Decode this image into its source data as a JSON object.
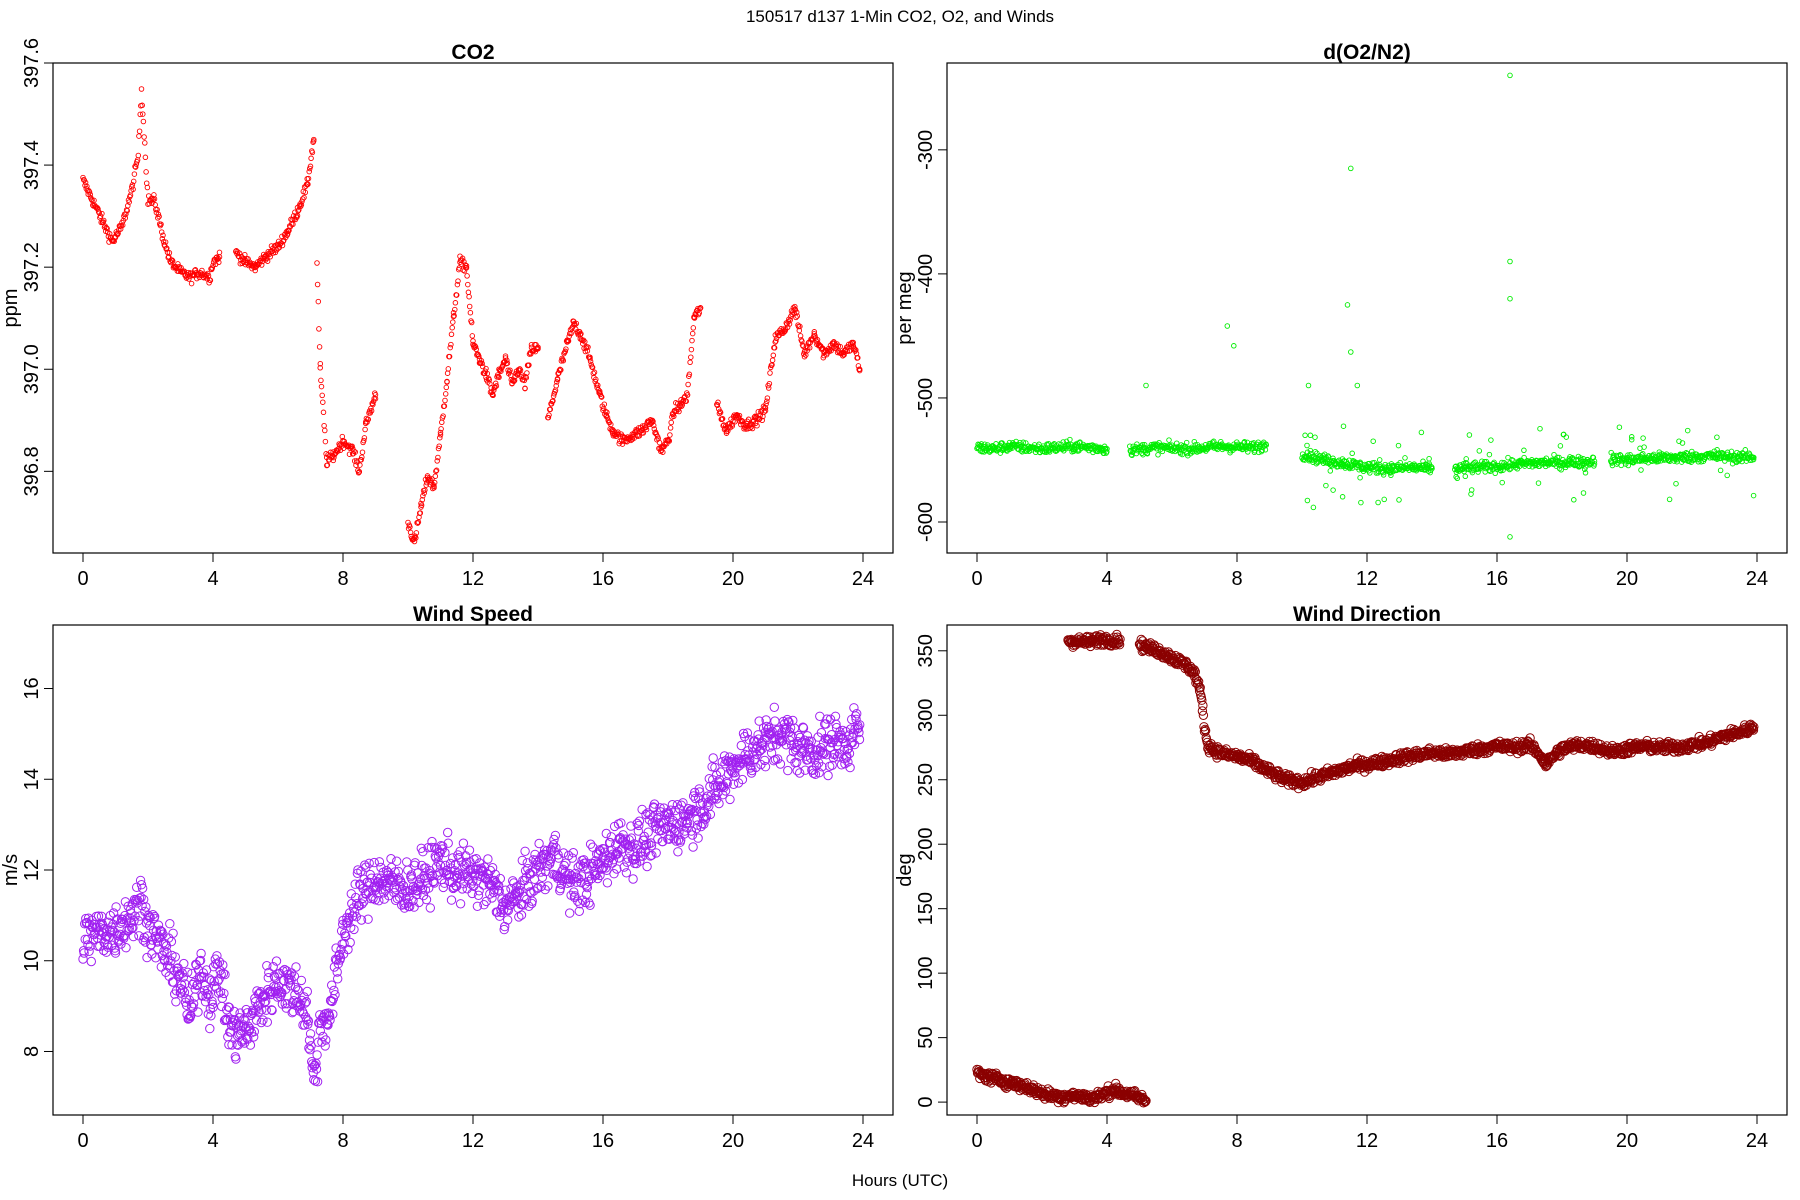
{
  "figure": {
    "title": "150517   d137   1-Min CO2, O2, and Winds",
    "xlabel": "Hours (UTC)"
  },
  "chart_data": [
    {
      "type": "scatter",
      "title": "CO2",
      "ylabel": "ppm",
      "xlim": [
        0,
        24
      ],
      "ylim": [
        396.64,
        397.6
      ],
      "xticks": [
        0,
        4,
        8,
        12,
        16,
        20,
        24
      ],
      "xtick_labels": [
        "0",
        "4",
        "8",
        "12",
        "16",
        "20",
        "24"
      ],
      "yticks": [
        396.8,
        397.0,
        397.2,
        397.4,
        397.6
      ],
      "ytick_labels": [
        "396.8",
        "397.0",
        "397.2",
        "397.4",
        "397.6"
      ],
      "color": "#ff0000",
      "marker": "open-circle-small",
      "grid": false,
      "series": [
        {
          "x": [
            0,
            0.3,
            0.6,
            0.9,
            1.2,
            1.5,
            1.7,
            1.8,
            2.0,
            2.2,
            2.5,
            2.7,
            3.0,
            3.3,
            3.6,
            3.9,
            4.0,
            4.2
          ],
          "y": [
            397.37,
            397.33,
            397.29,
            397.25,
            397.28,
            397.35,
            397.42,
            397.55,
            397.33,
            397.33,
            397.25,
            397.21,
            397.19,
            397.18,
            397.19,
            397.18,
            397.21,
            397.22
          ]
        },
        {
          "x": [
            4.7,
            5.0,
            5.3,
            5.6,
            6.0,
            6.3,
            6.6,
            6.9,
            7.1
          ],
          "y": [
            397.23,
            397.21,
            397.2,
            397.22,
            397.24,
            397.27,
            397.31,
            397.36,
            397.45
          ]
        },
        {
          "x": [
            7.2,
            7.3,
            7.5,
            7.7,
            8.0,
            8.3,
            8.5,
            8.7,
            8.9,
            9.0
          ],
          "y": [
            397.21,
            397.0,
            396.82,
            396.83,
            396.86,
            396.84,
            396.8,
            396.89,
            396.93,
            396.95
          ]
        },
        {
          "x": [
            10.0,
            10.2,
            10.4,
            10.6,
            10.8,
            11.0,
            11.2,
            11.4,
            11.6,
            11.8,
            12.0,
            12.2,
            12.4,
            12.6,
            12.8,
            13.0,
            13.2,
            13.4,
            13.6,
            13.8,
            14.0
          ],
          "y": [
            396.7,
            396.66,
            396.73,
            396.79,
            396.77,
            396.87,
            396.98,
            397.1,
            397.21,
            397.2,
            397.05,
            397.02,
            396.99,
            396.95,
            396.99,
            397.02,
            396.97,
            397.0,
            396.97,
            397.04,
            397.04
          ]
        },
        {
          "x": [
            14.3,
            14.6,
            14.9,
            15.1,
            15.3,
            15.6,
            15.9,
            16.1,
            16.3,
            16.6,
            16.9,
            17.2,
            17.5,
            17.8,
            18.0,
            18.2,
            18.4,
            18.6,
            18.8,
            19.0
          ],
          "y": [
            396.9,
            396.98,
            397.05,
            397.09,
            397.07,
            397.02,
            396.95,
            396.91,
            396.88,
            396.86,
            396.87,
            396.88,
            396.9,
            396.84,
            396.86,
            396.92,
            396.93,
            396.95,
            397.1,
            397.12
          ]
        },
        {
          "x": [
            19.5,
            19.8,
            20.1,
            20.4,
            20.7,
            21.0,
            21.3,
            21.6,
            21.9,
            22.2,
            22.5,
            22.8,
            23.1,
            23.4,
            23.7,
            23.9
          ],
          "y": [
            396.93,
            396.88,
            396.91,
            396.89,
            396.9,
            396.92,
            397.06,
            397.08,
            397.12,
            397.03,
            397.07,
            397.03,
            397.05,
            397.03,
            397.05,
            397.0
          ]
        }
      ]
    },
    {
      "type": "scatter",
      "title": "d(O2/N2)",
      "ylabel": "per meg",
      "xlim": [
        0,
        24
      ],
      "ylim": [
        -625,
        -230
      ],
      "xticks": [
        0,
        4,
        8,
        12,
        16,
        20,
        24
      ],
      "xtick_labels": [
        "0",
        "4",
        "8",
        "12",
        "16",
        "20",
        "24"
      ],
      "yticks": [
        -600,
        -500,
        -400,
        -300
      ],
      "ytick_labels": [
        "-600",
        "-500",
        "-400",
        "-300"
      ],
      "color": "#00ee00",
      "marker": "open-circle-small",
      "grid": false,
      "series": [
        {
          "x": [
            0,
            0.5,
            1,
            1.5,
            2,
            2.5,
            3,
            3.5,
            4
          ],
          "y": [
            -540,
            -541,
            -539,
            -540,
            -541,
            -540,
            -539,
            -540,
            -541
          ]
        },
        {
          "x": [
            4.7,
            5.5,
            6.5,
            7.5,
            8.5,
            8.9
          ],
          "y": [
            -542,
            -540,
            -541,
            -539,
            -540,
            -538
          ]
        },
        {
          "x": [
            10,
            10.7,
            11.4,
            12,
            12.7,
            13.4,
            14
          ],
          "y": [
            -545,
            -550,
            -553,
            -556,
            -557,
            -556,
            -557
          ]
        },
        {
          "x": [
            14.7,
            15.4,
            16.1,
            16.8,
            17.5,
            18.2,
            19
          ],
          "y": [
            -557,
            -556,
            -555,
            -553,
            -552,
            -552,
            -551
          ]
        },
        {
          "x": [
            19.5,
            20.5,
            21.5,
            22.5,
            23.9
          ],
          "y": [
            -550,
            -549,
            -548,
            -547,
            -548
          ]
        }
      ],
      "outliers": {
        "x": [
          5.2,
          7.7,
          7.9,
          10.2,
          11.4,
          11.5,
          11.5,
          11.7,
          16.4,
          16.4,
          16.4,
          16.4
        ],
        "y": [
          -490,
          -442,
          -458,
          -490,
          -425,
          -463,
          -315,
          -490,
          -240,
          -390,
          -420,
          -612
        ]
      }
    },
    {
      "type": "scatter",
      "title": "Wind Speed",
      "ylabel": "m/s",
      "xlim": [
        0,
        24
      ],
      "ylim": [
        6.6,
        17.4
      ],
      "xticks": [
        0,
        4,
        8,
        12,
        16,
        20,
        24
      ],
      "xtick_labels": [
        "0",
        "4",
        "8",
        "12",
        "16",
        "20",
        "24"
      ],
      "yticks": [
        8,
        10,
        12,
        14,
        16
      ],
      "ytick_labels": [
        "8",
        "10",
        "12",
        "14",
        "16"
      ],
      "color": "#a020f0",
      "marker": "open-circle",
      "grid": false,
      "series": [
        {
          "x": [
            0,
            0.5,
            1.0,
            1.5,
            1.8,
            2.0,
            2.5,
            3.0,
            3.3,
            3.6,
            3.9,
            4.2,
            4.5,
            4.8,
            5.1,
            5.4,
            5.7,
            6.0,
            6.3,
            6.6,
            6.9,
            7.1,
            7.3,
            7.6,
            8.0,
            8.5,
            9.0,
            9.5,
            10.0,
            10.5,
            11.0,
            11.5,
            12.0,
            12.5,
            13.0,
            13.5,
            14.0,
            14.5,
            15.0,
            15.5,
            16.0,
            16.5,
            17.0,
            17.5,
            18.0,
            18.5,
            19.0,
            19.5,
            20.0,
            20.5,
            21.0,
            21.5,
            22.0,
            22.5,
            23.0,
            23.5,
            23.9
          ],
          "y": [
            10.5,
            10.6,
            10.7,
            11.0,
            11.3,
            10.8,
            10.2,
            9.6,
            8.8,
            9.9,
            9.2,
            9.8,
            8.5,
            8.4,
            8.5,
            9.0,
            9.3,
            9.6,
            9.4,
            9.3,
            8.9,
            7.3,
            8.6,
            8.8,
            10.6,
            11.4,
            11.8,
            11.7,
            11.6,
            11.8,
            12.2,
            11.9,
            11.9,
            11.7,
            11.2,
            11.5,
            12.0,
            12.3,
            11.7,
            11.8,
            12.2,
            12.6,
            12.5,
            12.8,
            13.0,
            13.1,
            13.4,
            13.8,
            14.3,
            14.6,
            14.8,
            15.0,
            14.7,
            14.6,
            14.8,
            14.8,
            15.2
          ]
        }
      ]
    },
    {
      "type": "scatter",
      "title": "Wind Direction",
      "ylabel": "deg",
      "xlim": [
        0,
        24
      ],
      "ylim": [
        -10,
        370
      ],
      "xticks": [
        0,
        4,
        8,
        12,
        16,
        20,
        24
      ],
      "xtick_labels": [
        "0",
        "4",
        "8",
        "12",
        "16",
        "20",
        "24"
      ],
      "yticks": [
        0,
        50,
        100,
        150,
        200,
        250,
        300,
        350
      ],
      "ytick_labels": [
        "0",
        "50",
        "100",
        "150",
        "200",
        "250",
        "300",
        "350"
      ],
      "color": "#8b0000",
      "marker": "open-circle",
      "grid": false,
      "series": [
        {
          "x": [
            0,
            0.3,
            0.6,
            0.9,
            1.2,
            1.5,
            1.8,
            2.1,
            2.4,
            2.7,
            3.0,
            3.3,
            3.6,
            3.9,
            4.2,
            4.5,
            4.8,
            5.2
          ],
          "y": [
            22,
            20,
            18,
            16,
            14,
            12,
            9,
            6,
            5,
            4,
            5,
            4,
            3,
            6,
            10,
            7,
            5,
            1
          ]
        },
        {
          "x": [
            2.8,
            3.1,
            3.5,
            3.8,
            4.2,
            4.4
          ],
          "y": [
            358,
            357,
            357,
            359,
            358,
            359
          ]
        },
        {
          "x": [
            5.0,
            5.3,
            5.6,
            5.9,
            6.2,
            6.5,
            6.7,
            6.85,
            6.95,
            7.0,
            7.1,
            7.3,
            7.6,
            8.0,
            8.5,
            9.0,
            9.5,
            10.0,
            10.5,
            11.0,
            11.5,
            12.0,
            12.5,
            13.0,
            13.5,
            14.0,
            14.5,
            15.0,
            15.5,
            16.0,
            16.5,
            17.0,
            17.3,
            17.5,
            17.8,
            18.0,
            18.5,
            19.0,
            19.5,
            20.0,
            20.5,
            21.0,
            21.5,
            22.0,
            22.5,
            23.0,
            23.5,
            23.9
          ],
          "y": [
            355,
            352,
            350,
            346,
            342,
            338,
            332,
            320,
            305,
            290,
            277,
            273,
            270,
            268,
            264,
            256,
            250,
            248,
            252,
            256,
            260,
            262,
            264,
            267,
            269,
            271,
            270,
            272,
            274,
            276,
            275,
            277,
            270,
            262,
            270,
            274,
            277,
            276,
            272,
            274,
            276,
            275,
            275,
            277,
            279,
            284,
            287,
            291
          ]
        }
      ]
    }
  ]
}
